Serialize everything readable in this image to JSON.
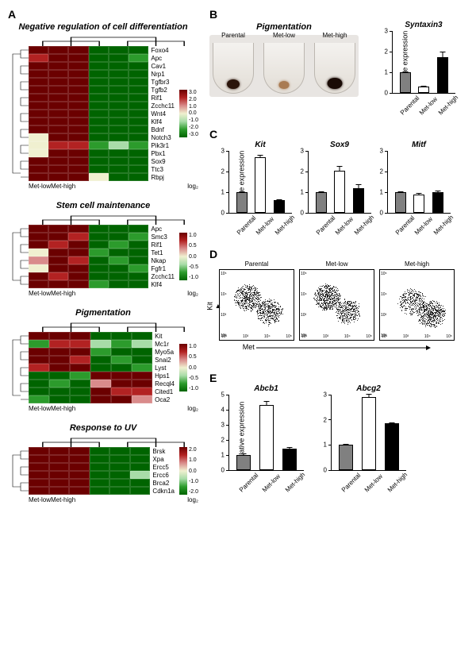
{
  "colors": {
    "bar_parental": "#808080",
    "bar_metlow": "#ffffff",
    "bar_methigh": "#000000",
    "scatter_dot": "#000000",
    "pellet_bg": "#e8e5e2"
  },
  "conditions": [
    "Parental",
    "Met-low",
    "Met-high"
  ],
  "panelA": {
    "label": "A",
    "colorscale": {
      "colors": [
        "#006400",
        "#2c9b2c",
        "#a8dca8",
        "#f0f0d0",
        "#d98b8b",
        "#b22222",
        "#6b0000"
      ]
    },
    "blocks": [
      {
        "title": "Negative regulation of cell differentiation",
        "rows": [
          "Foxo4",
          "Apc",
          "Cav1",
          "Nrp1",
          "Tgfbr3",
          "Tgfb2",
          "Rif1",
          "Zcchc11",
          "Wnt4",
          "Klf4",
          "Bdnf",
          "Notch3",
          "Pik3r1",
          "Pbx1",
          "Sox9",
          "Ttc3",
          "Rbpj"
        ],
        "legend_ticks": [
          "3.0",
          "2.0",
          "1.0",
          "0.0",
          "-1.0",
          "-2.0",
          "-3.0"
        ],
        "values": [
          [
            2.6,
            2.4,
            2.5,
            -2.5,
            -2.4,
            -2.6
          ],
          [
            2.2,
            2.7,
            2.6,
            -2.6,
            -2.5,
            -2.3
          ],
          [
            2.8,
            2.6,
            2.7,
            -2.7,
            -2.6,
            -2.5
          ],
          [
            2.5,
            2.4,
            2.6,
            -2.4,
            -2.7,
            -2.6
          ],
          [
            2.7,
            2.8,
            2.6,
            -2.6,
            -2.5,
            -2.4
          ],
          [
            2.6,
            2.5,
            2.7,
            -2.5,
            -2.6,
            -2.5
          ],
          [
            2.4,
            2.6,
            2.5,
            -2.6,
            -2.4,
            -2.6
          ],
          [
            2.5,
            2.7,
            2.6,
            -2.5,
            -2.7,
            -2.5
          ],
          [
            2.8,
            2.6,
            2.7,
            -2.4,
            -2.6,
            -2.7
          ],
          [
            2.6,
            2.5,
            2.4,
            -2.7,
            -2.5,
            -2.6
          ],
          [
            2.7,
            2.8,
            2.6,
            -2.5,
            -2.6,
            -2.4
          ],
          [
            0.4,
            2.5,
            2.7,
            -2.6,
            -2.5,
            -2.5
          ],
          [
            0.3,
            2.0,
            1.8,
            -2.0,
            -1.2,
            -1.8
          ],
          [
            0.2,
            2.6,
            2.4,
            -2.6,
            -2.4,
            -2.6
          ],
          [
            2.6,
            2.7,
            2.5,
            -2.5,
            -2.7,
            -2.4
          ],
          [
            2.5,
            2.4,
            2.6,
            -2.4,
            -2.5,
            -2.7
          ],
          [
            2.7,
            2.6,
            2.5,
            -0.3,
            -2.6,
            -2.5
          ]
        ]
      },
      {
        "title": "Stem cell maintenance",
        "rows": [
          "Apc",
          "Smc3",
          "Rif1",
          "Tet1",
          "Nkap",
          "Fgfr1",
          "Zcchc11",
          "Klf4"
        ],
        "legend_ticks": [
          "1.0",
          "0.5",
          "0.0",
          "-0.5",
          "-1.0"
        ],
        "values": [
          [
            0.9,
            0.8,
            0.9,
            -0.9,
            -0.8,
            -0.9
          ],
          [
            0.8,
            0.9,
            0.7,
            -0.8,
            -0.9,
            -0.7
          ],
          [
            0.9,
            0.7,
            0.8,
            -0.9,
            -0.7,
            -0.8
          ],
          [
            0.1,
            0.8,
            0.9,
            -0.7,
            -0.9,
            -0.8
          ],
          [
            0.2,
            0.8,
            0.7,
            -0.8,
            -0.7,
            -0.8
          ],
          [
            0.1,
            0.9,
            0.8,
            -0.8,
            -0.8,
            -0.7
          ],
          [
            0.8,
            0.7,
            0.9,
            -0.9,
            -0.8,
            -0.9
          ],
          [
            0.9,
            0.9,
            0.8,
            -0.7,
            -0.9,
            -0.8
          ]
        ]
      },
      {
        "title": "Pigmentation",
        "rows": [
          "Kit",
          "Mc1r",
          "Myo5a",
          "Snai2",
          "Lyst",
          "Hps1",
          "Recql4",
          "Cited1",
          "Oca2"
        ],
        "legend_ticks": [
          "1.0",
          "0.5",
          "0.0",
          "-0.5",
          "-1.0"
        ],
        "values": [
          [
            0.9,
            0.8,
            0.9,
            -0.9,
            -0.8,
            -0.9
          ],
          [
            -0.7,
            0.5,
            0.7,
            -0.3,
            -0.7,
            -0.3
          ],
          [
            0.8,
            0.9,
            0.8,
            -0.7,
            -0.9,
            -0.8
          ],
          [
            0.9,
            0.8,
            0.7,
            -0.8,
            -0.7,
            -0.9
          ],
          [
            0.7,
            0.9,
            0.8,
            -0.9,
            -0.8,
            -0.7
          ],
          [
            -0.8,
            -0.9,
            -0.7,
            0.8,
            0.9,
            0.8
          ],
          [
            -0.8,
            -0.7,
            -0.9,
            0.3,
            0.8,
            0.9
          ],
          [
            -0.9,
            -0.8,
            -0.8,
            0.9,
            0.7,
            0.6
          ],
          [
            -0.7,
            -0.9,
            -0.8,
            0.8,
            0.9,
            0.3
          ]
        ]
      },
      {
        "title": "Response to UV",
        "rows": [
          "Brsk",
          "Xpa",
          "Ercc5",
          "Ercc6",
          "Brca2",
          "Cdkn1a"
        ],
        "legend_ticks": [
          "2.0",
          "1.0",
          "0.0",
          "-1.0",
          "-2.0"
        ],
        "values": [
          [
            1.8,
            1.7,
            1.9,
            -1.9,
            -1.7,
            -1.8
          ],
          [
            1.9,
            1.8,
            1.7,
            -1.8,
            -1.9,
            -1.7
          ],
          [
            1.7,
            1.9,
            1.8,
            -1.7,
            -1.8,
            -1.9
          ],
          [
            1.8,
            1.7,
            1.9,
            -1.9,
            -1.8,
            -0.5
          ],
          [
            1.9,
            1.8,
            1.7,
            -1.8,
            -1.7,
            -1.9
          ],
          [
            1.7,
            1.9,
            1.8,
            -1.7,
            -1.9,
            -1.8
          ]
        ]
      }
    ],
    "xaxis_groups": [
      "Met-low",
      "Met-high"
    ],
    "legend_unit": "log₂"
  },
  "panelB": {
    "label": "B",
    "pigmentation_title": "Pigmentation",
    "pellets": [
      {
        "label": "Parental",
        "color": "#2b140a",
        "size": 16
      },
      {
        "label": "Met-low",
        "color": "#a97b52",
        "size": 13
      },
      {
        "label": "Met-high",
        "color": "#1a0b05",
        "size": 19
      }
    ],
    "chart": {
      "title": "Syntaxin3",
      "ylab": "Relative expression",
      "ymax": 3,
      "yticks": [
        0,
        1,
        2,
        3
      ],
      "bars": [
        {
          "v": 1.0,
          "e": 0.04
        },
        {
          "v": 0.3,
          "e": 0.03
        },
        {
          "v": 1.75,
          "e": 0.25
        }
      ]
    }
  },
  "panelC": {
    "label": "C",
    "ylab": "Relative expression",
    "charts": [
      {
        "title": "Kit",
        "ymax": 3,
        "yticks": [
          0,
          1,
          2,
          3
        ],
        "bars": [
          {
            "v": 1.0,
            "e": 0.05
          },
          {
            "v": 2.7,
            "e": 0.12
          },
          {
            "v": 0.6,
            "e": 0.05
          }
        ]
      },
      {
        "title": "Sox9",
        "ymax": 3,
        "yticks": [
          0,
          1,
          2,
          3
        ],
        "bars": [
          {
            "v": 1.0,
            "e": 0.04
          },
          {
            "v": 2.05,
            "e": 0.22
          },
          {
            "v": 1.2,
            "e": 0.2
          }
        ]
      },
      {
        "title": "Mitf",
        "ymax": 3,
        "yticks": [
          0,
          1,
          2,
          3
        ],
        "bars": [
          {
            "v": 1.0,
            "e": 0.05
          },
          {
            "v": 0.9,
            "e": 0.05
          },
          {
            "v": 1.0,
            "e": 0.06
          }
        ]
      }
    ]
  },
  "panelD": {
    "label": "D",
    "ylab": "Kit",
    "xlab": "Met",
    "panels": [
      "Parental",
      "Met-low",
      "Met-high"
    ],
    "axis_labels_y": [
      "10⁵",
      "10⁴",
      "10³",
      "10²"
    ],
    "axis_labels_x": [
      "10²",
      "10³",
      "10⁴",
      "10⁵"
    ]
  },
  "panelE": {
    "label": "E",
    "ylab": "Relative expression",
    "charts": [
      {
        "title": "Abcb1",
        "ymax": 5,
        "yticks": [
          0,
          1,
          2,
          3,
          4,
          5
        ],
        "bars": [
          {
            "v": 1.0,
            "e": 0.08
          },
          {
            "v": 4.3,
            "e": 0.3
          },
          {
            "v": 1.4,
            "e": 0.15
          }
        ]
      },
      {
        "title": "Abcg2",
        "ymax": 3,
        "yticks": [
          0,
          1,
          2,
          3
        ],
        "bars": [
          {
            "v": 1.0,
            "e": 0.05
          },
          {
            "v": 2.9,
            "e": 0.12
          },
          {
            "v": 1.85,
            "e": 0.06
          }
        ]
      }
    ]
  }
}
